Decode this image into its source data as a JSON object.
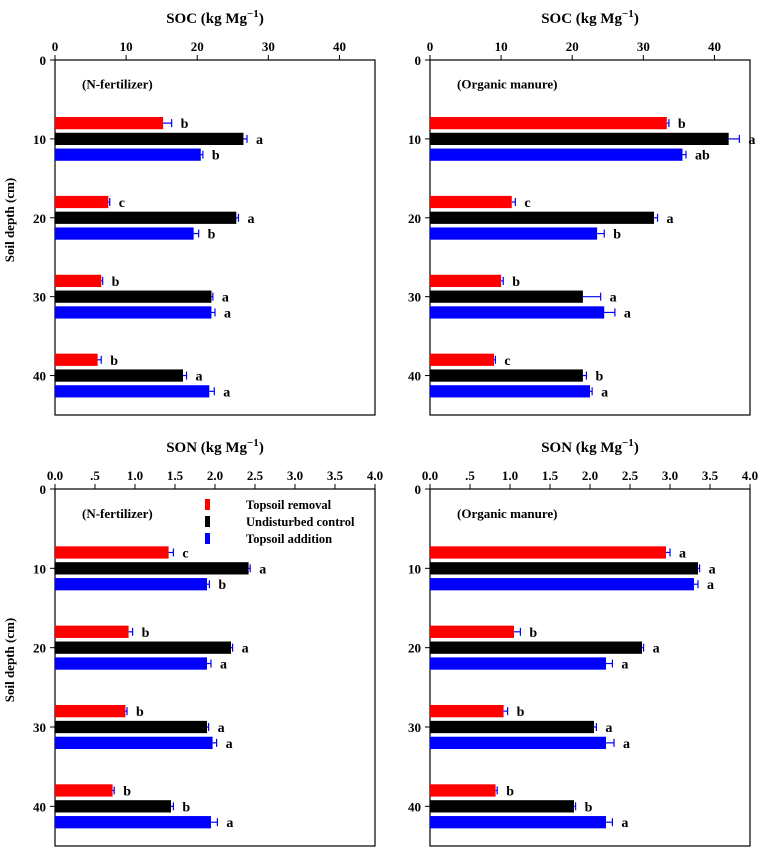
{
  "ylabel": "Soil depth (cm)",
  "legend": [
    {
      "label": "Topsoil removal",
      "color": "#ff0000"
    },
    {
      "label": "Undisturbed control",
      "color": "#000000"
    },
    {
      "label": "Topsoil addition",
      "color": "#0000ff"
    }
  ],
  "colors": {
    "removal": "#ff0000",
    "control": "#000000",
    "addition": "#0000ff",
    "errorbar": "#0000ff"
  },
  "chart_data": [
    {
      "type": "bar",
      "orientation": "horizontal",
      "title": "SOC (kg Mg⁻¹)",
      "panel_label": "(N-fertilizer)",
      "xlim": [
        0,
        45
      ],
      "xticks": [
        0,
        10,
        20,
        30,
        40
      ],
      "xtick_labels": [
        "0",
        "10",
        "20",
        "30",
        "40"
      ],
      "ylim": [
        0,
        45
      ],
      "yticks": [
        0,
        10,
        20,
        30,
        40
      ],
      "depths": [
        10,
        20,
        30,
        40
      ],
      "series": [
        {
          "name": "Topsoil removal",
          "values": [
            15.2,
            7.5,
            6.5,
            6.0
          ],
          "errors": [
            1.2,
            0.2,
            0.2,
            0.5
          ],
          "letters": [
            "b",
            "c",
            "b",
            "b"
          ]
        },
        {
          "name": "Undisturbed control",
          "values": [
            26.5,
            25.5,
            22.0,
            18.0
          ],
          "errors": [
            0.5,
            0.3,
            0.2,
            0.5
          ],
          "letters": [
            "a",
            "a",
            "a",
            "a"
          ]
        },
        {
          "name": "Topsoil addition",
          "values": [
            20.5,
            19.5,
            22.0,
            21.7
          ],
          "errors": [
            0.3,
            0.7,
            0.5,
            0.7
          ],
          "letters": [
            "b",
            "b",
            "a",
            "a"
          ]
        }
      ]
    },
    {
      "type": "bar",
      "orientation": "horizontal",
      "title": "SOC (kg Mg⁻¹)",
      "panel_label": "(Organic manure)",
      "xlim": [
        0,
        45
      ],
      "xticks": [
        0,
        10,
        20,
        30,
        40
      ],
      "xtick_labels": [
        "0",
        "10",
        "20",
        "30",
        "40"
      ],
      "ylim": [
        0,
        45
      ],
      "yticks": [
        0,
        10,
        20,
        30,
        40
      ],
      "depths": [
        10,
        20,
        30,
        40
      ],
      "series": [
        {
          "name": "Topsoil removal",
          "values": [
            33.3,
            11.5,
            10.0,
            9.0
          ],
          "errors": [
            0.3,
            0.5,
            0.3,
            0.2
          ],
          "letters": [
            "b",
            "c",
            "b",
            "c"
          ]
        },
        {
          "name": "Undisturbed control",
          "values": [
            42.0,
            31.5,
            21.5,
            21.5
          ],
          "errors": [
            1.5,
            0.5,
            2.5,
            0.5
          ],
          "letters": [
            "a",
            "a",
            "a",
            "b"
          ]
        },
        {
          "name": "Topsoil addition",
          "values": [
            35.5,
            23.5,
            24.5,
            22.5
          ],
          "errors": [
            0.5,
            1.0,
            1.5,
            0.3
          ],
          "letters": [
            "ab",
            "b",
            "a",
            "a"
          ]
        }
      ]
    },
    {
      "type": "bar",
      "orientation": "horizontal",
      "title": "SON (kg Mg⁻¹)",
      "panel_label": "(N-fertilizer)",
      "xlim": [
        0,
        4
      ],
      "xticks": [
        0,
        0.5,
        1,
        1.5,
        2,
        2.5,
        3,
        3.5,
        4
      ],
      "xtick_labels": [
        "0.0",
        ".5",
        "1.0",
        "1.5",
        "2.0",
        "2.5",
        "3.0",
        "3.5",
        "4.0"
      ],
      "ylim": [
        0,
        45
      ],
      "yticks": [
        0,
        10,
        20,
        30,
        40
      ],
      "depths": [
        10,
        20,
        30,
        40
      ],
      "series": [
        {
          "name": "Topsoil removal",
          "values": [
            1.42,
            0.92,
            0.88,
            0.72
          ],
          "errors": [
            0.06,
            0.05,
            0.02,
            0.02
          ],
          "letters": [
            "c",
            "b",
            "b",
            "b"
          ]
        },
        {
          "name": "Undisturbed control",
          "values": [
            2.42,
            2.2,
            1.9,
            1.45
          ],
          "errors": [
            0.02,
            0.02,
            0.02,
            0.03
          ],
          "letters": [
            "a",
            "a",
            "a",
            "b"
          ]
        },
        {
          "name": "Topsoil addition",
          "values": [
            1.9,
            1.9,
            1.97,
            1.95
          ],
          "errors": [
            0.03,
            0.05,
            0.05,
            0.08
          ],
          "letters": [
            "b",
            "a",
            "a",
            "a"
          ]
        }
      ]
    },
    {
      "type": "bar",
      "orientation": "horizontal",
      "title": "SON (kg Mg⁻¹)",
      "panel_label": "(Organic manure)",
      "xlim": [
        0,
        4
      ],
      "xticks": [
        0,
        0.5,
        1,
        1.5,
        2,
        2.5,
        3,
        3.5,
        4
      ],
      "xtick_labels": [
        "0.0",
        ".5",
        "1.0",
        "1.5",
        "2.0",
        "2.5",
        "3.0",
        "3.5",
        "4.0"
      ],
      "ylim": [
        0,
        45
      ],
      "yticks": [
        0,
        10,
        20,
        30,
        40
      ],
      "depths": [
        10,
        20,
        30,
        40
      ],
      "series": [
        {
          "name": "Topsoil removal",
          "values": [
            2.95,
            1.05,
            0.92,
            0.82
          ],
          "errors": [
            0.05,
            0.08,
            0.05,
            0.02
          ],
          "letters": [
            "a",
            "b",
            "b",
            "b"
          ]
        },
        {
          "name": "Undisturbed control",
          "values": [
            3.35,
            2.65,
            2.05,
            1.8
          ],
          "errors": [
            0.02,
            0.02,
            0.03,
            0.02
          ],
          "letters": [
            "a",
            "a",
            "a",
            "b"
          ]
        },
        {
          "name": "Topsoil addition",
          "values": [
            3.3,
            2.2,
            2.2,
            2.2
          ],
          "errors": [
            0.05,
            0.08,
            0.1,
            0.08
          ],
          "letters": [
            "a",
            "a",
            "a",
            "a"
          ]
        }
      ]
    }
  ]
}
